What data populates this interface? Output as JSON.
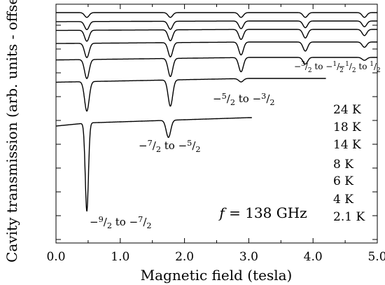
{
  "chart_data": {
    "type": "line",
    "title": "",
    "xlabel": "Magnetic field (tesla)",
    "ylabel": "Cavity transmission (arb. units - offset)",
    "xlim": [
      0.0,
      5.0
    ],
    "x_ticks": [
      "0.0",
      "1.0",
      "2.0",
      "3.0",
      "4.0",
      "5.0"
    ],
    "y_tick_labels": "none",
    "grid": false,
    "frequency_label": "f = 138 GHz",
    "series": [
      {
        "name": "24 K",
        "x_range": [
          0.0,
          5.0
        ],
        "resonances": [
          {
            "x": 0.48,
            "depth": 0.1
          },
          {
            "x": 1.78,
            "depth": 0.1
          },
          {
            "x": 2.88,
            "depth": 0.1
          },
          {
            "x": 3.88,
            "depth": 0.1
          },
          {
            "x": 4.8,
            "depth": 0.1
          }
        ]
      },
      {
        "name": "18 K",
        "x_range": [
          0.0,
          5.0
        ],
        "resonances": [
          {
            "x": 0.48,
            "depth": 0.17
          },
          {
            "x": 1.78,
            "depth": 0.17
          },
          {
            "x": 2.88,
            "depth": 0.16
          },
          {
            "x": 3.88,
            "depth": 0.14
          },
          {
            "x": 4.8,
            "depth": 0.12
          }
        ]
      },
      {
        "name": "14 K",
        "x_range": [
          0.0,
          5.0
        ],
        "resonances": [
          {
            "x": 0.48,
            "depth": 0.23
          },
          {
            "x": 1.78,
            "depth": 0.23
          },
          {
            "x": 2.88,
            "depth": 0.21
          },
          {
            "x": 3.88,
            "depth": 0.18
          },
          {
            "x": 4.8,
            "depth": 0.13
          }
        ]
      },
      {
        "name": "8 K",
        "x_range": [
          0.0,
          5.0
        ],
        "resonances": [
          {
            "x": 0.48,
            "depth": 0.3
          },
          {
            "x": 1.78,
            "depth": 0.3
          },
          {
            "x": 2.88,
            "depth": 0.27
          },
          {
            "x": 3.88,
            "depth": 0.19
          },
          {
            "x": 4.8,
            "depth": 0.11
          }
        ]
      },
      {
        "name": "6 K",
        "x_range": [
          0.0,
          5.0
        ],
        "resonances": [
          {
            "x": 0.48,
            "depth": 0.4
          },
          {
            "x": 1.78,
            "depth": 0.38
          },
          {
            "x": 2.88,
            "depth": 0.3
          },
          {
            "x": 3.88,
            "depth": 0.14
          },
          {
            "x": 4.8,
            "depth": 0.06
          }
        ]
      },
      {
        "name": "4 K",
        "x_range": [
          0.0,
          4.2
        ],
        "resonances": [
          {
            "x": 0.48,
            "depth": 0.62
          },
          {
            "x": 1.78,
            "depth": 0.55
          },
          {
            "x": 2.88,
            "depth": 0.07
          }
        ]
      },
      {
        "name": "2.1 K",
        "x_range": [
          0.0,
          3.05
        ],
        "resonances": [
          {
            "x": 0.48,
            "depth": 1.85
          },
          {
            "x": 1.75,
            "depth": 0.36
          }
        ]
      }
    ],
    "transition_labels": [
      {
        "text": "−9/2 to −7/2",
        "x": 0.48
      },
      {
        "text": "−7/2 to −5/2",
        "x": 1.75
      },
      {
        "text": "−5/2 to −3/2",
        "x": 2.88
      },
      {
        "text": "−3/2 to −1/2",
        "x": 3.88
      },
      {
        "text": "−1/2 to 1/2",
        "x": 4.8
      }
    ]
  }
}
